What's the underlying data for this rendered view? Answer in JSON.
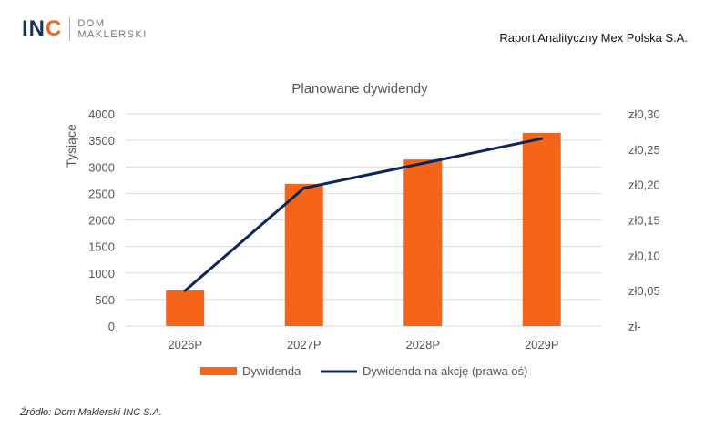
{
  "header": {
    "logo_main": "INC",
    "logo_sub1": "DOM",
    "logo_sub2": "MAKLERSKI",
    "report_title": "Raport Analityczny Mex Polska S.A."
  },
  "footer": {
    "source": "Źródło: Dom Maklerski INC S.A."
  },
  "colors": {
    "bar": "#f4651a",
    "line": "#0d2559",
    "grid": "#d9d9d9",
    "brand_navy": "#1c2f55",
    "brand_orange": "#f26522"
  },
  "chart_data": {
    "type": "bar+line",
    "title": "Planowane dywidendy",
    "ylabel": "Tysiące",
    "categories": [
      "2026P",
      "2027P",
      "2028P",
      "2029P"
    ],
    "ylim": [
      0,
      4000
    ],
    "yticks": [
      "0",
      "500",
      "1000",
      "1500",
      "2000",
      "2500",
      "3000",
      "3500",
      "4000"
    ],
    "y2lim": [
      0,
      0.3
    ],
    "y2ticks": [
      "zł-",
      "zł0,05",
      "zł0,10",
      "zł0,15",
      "zł0,20",
      "zł0,25",
      "zł0,30"
    ],
    "grid": true,
    "legend": "bottom",
    "series": [
      {
        "name": "Dywidenda",
        "type": "bar",
        "axis": "left",
        "values": [
          670,
          2680,
          3140,
          3640
        ]
      },
      {
        "name": "Dywidenda na akcję (prawa oś)",
        "type": "line",
        "axis": "right",
        "values": [
          0.05,
          0.195,
          0.23,
          0.265
        ]
      }
    ]
  }
}
